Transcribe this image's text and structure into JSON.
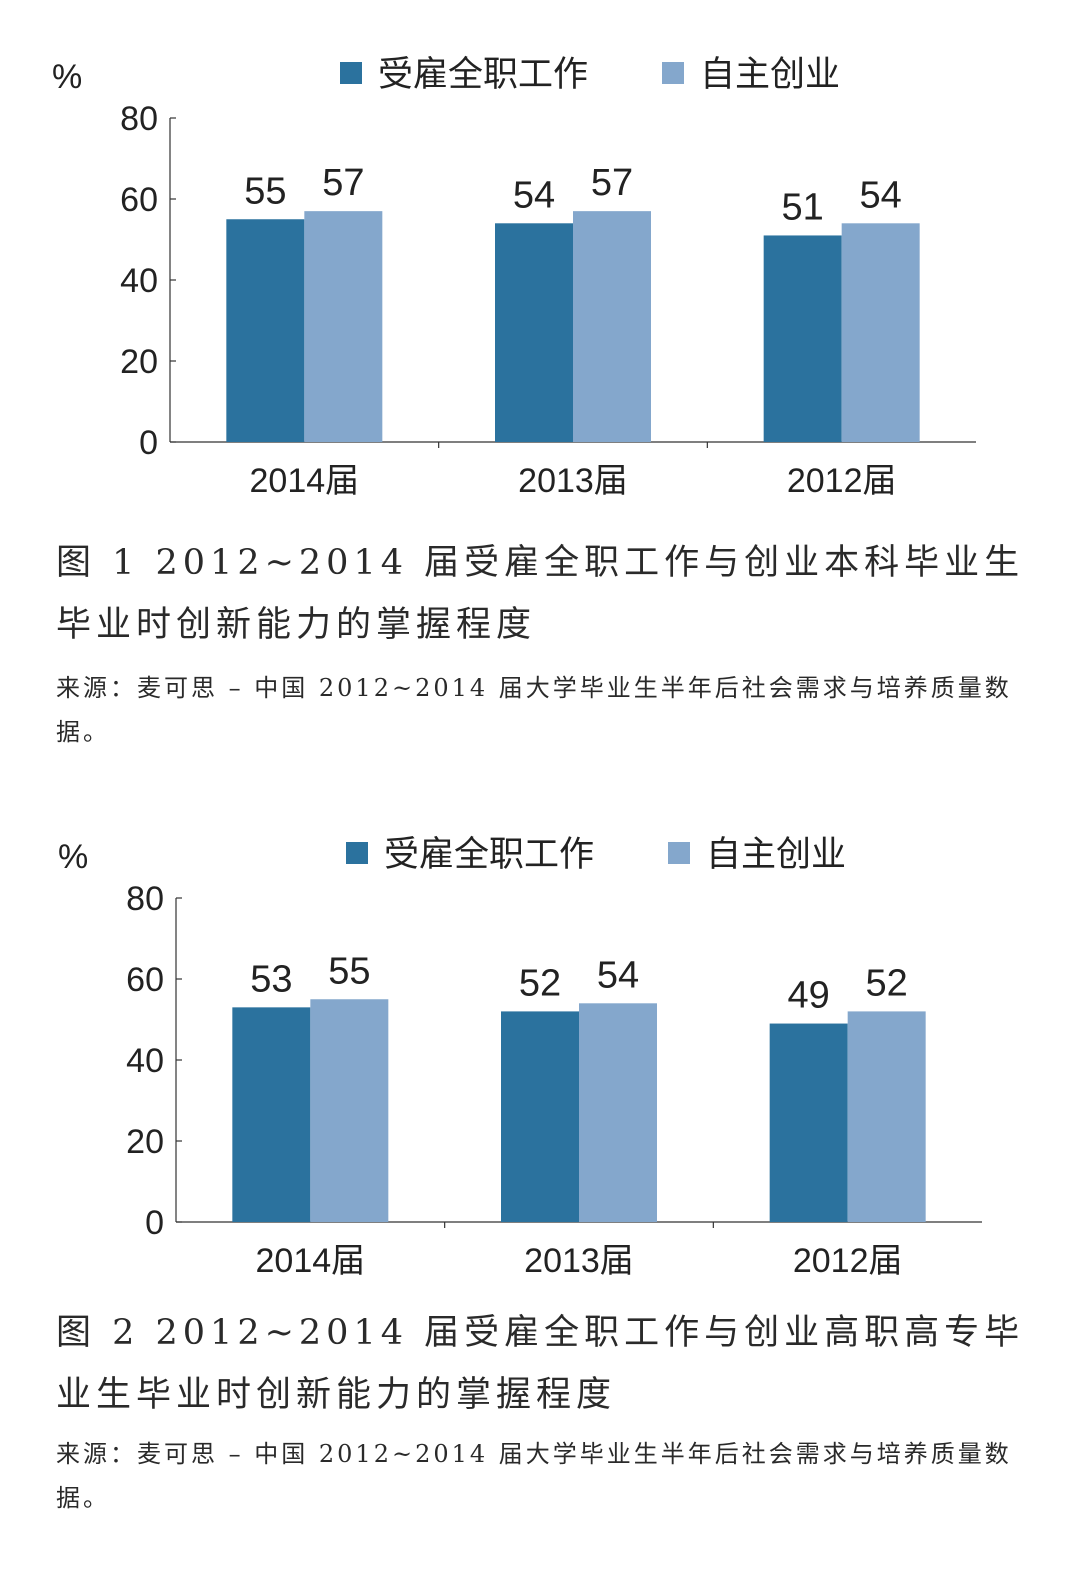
{
  "colors": {
    "series1": "#2b729e",
    "series2": "#84a7cc",
    "axis": "#333333"
  },
  "chart_data": [
    {
      "type": "bar",
      "unit_label": "%",
      "categories": [
        "2014届",
        "2013届",
        "2012届"
      ],
      "series": [
        {
          "name": "受雇全职工作",
          "values": [
            55,
            54,
            51
          ]
        },
        {
          "name": "自主创业",
          "values": [
            57,
            57,
            54
          ]
        }
      ],
      "yticks": [
        "0",
        "20",
        "40",
        "60",
        "80"
      ],
      "ylim": [
        0,
        80
      ],
      "legend": "top",
      "grid": false,
      "caption": "图 1  2012~2014 届受雇全职工作与创业本科毕业生毕业时创新能力的掌握程度",
      "source": "来源：麦可思 – 中国 2012~2014 届大学毕业生半年后社会需求与培养质量数据。"
    },
    {
      "type": "bar",
      "unit_label": "%",
      "categories": [
        "2014届",
        "2013届",
        "2012届"
      ],
      "series": [
        {
          "name": "受雇全职工作",
          "values": [
            53,
            52,
            49
          ]
        },
        {
          "name": "自主创业",
          "values": [
            55,
            54,
            52
          ]
        }
      ],
      "yticks": [
        "0",
        "20",
        "40",
        "60",
        "80"
      ],
      "ylim": [
        0,
        80
      ],
      "legend": "top",
      "grid": false,
      "caption": "图 2  2012~2014 届受雇全职工作与创业高职高专毕业生毕业时创新能力的掌握程度",
      "source": "来源：麦可思 – 中国 2012~2014 届大学毕业生半年后社会需求与培养质量数据。"
    }
  ]
}
